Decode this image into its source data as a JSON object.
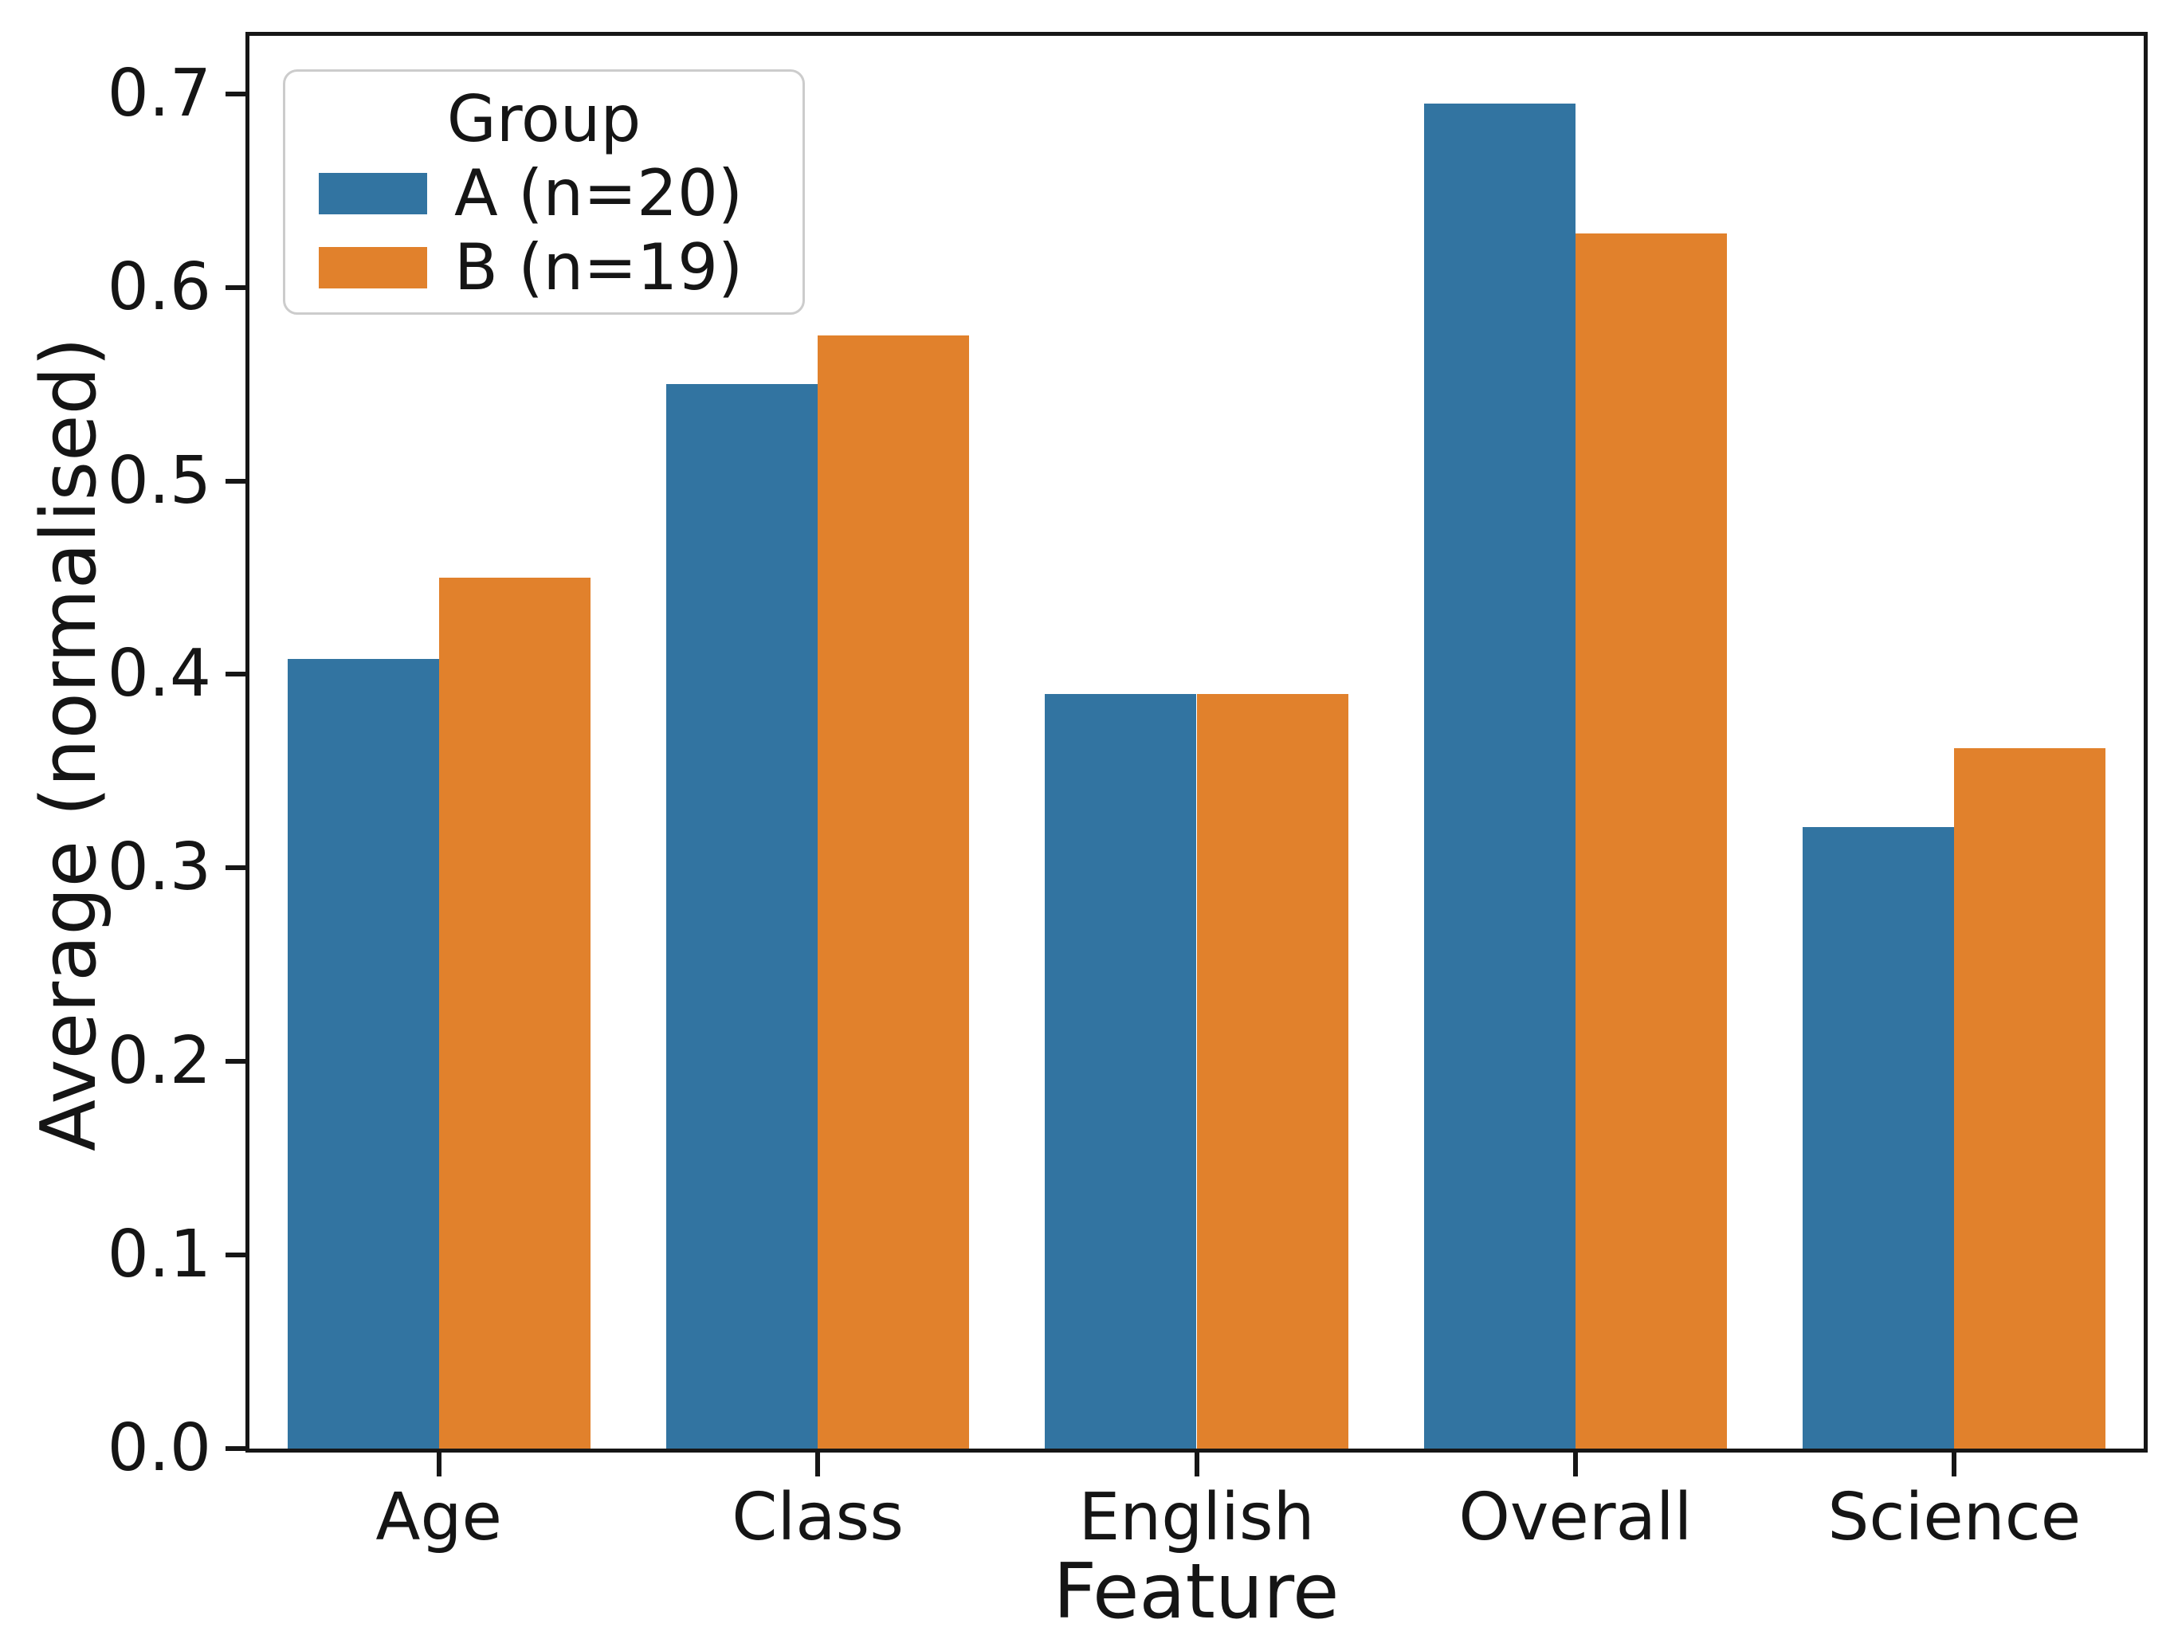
{
  "chart_data": {
    "type": "bar",
    "title": "",
    "xlabel": "Feature",
    "ylabel": "Average (normalised)",
    "categories": [
      "Age",
      "Class",
      "English",
      "Overall",
      "Science"
    ],
    "series": [
      {
        "name": "A (n=20)",
        "color": "#3274A1",
        "values": [
          0.408,
          0.55,
          0.39,
          0.695,
          0.321
        ]
      },
      {
        "name": "B (n=19)",
        "color": "#E1812C",
        "values": [
          0.45,
          0.575,
          0.39,
          0.628,
          0.362
        ]
      }
    ],
    "legend": {
      "title": "Group",
      "position": "upper left"
    },
    "ylim": [
      0,
      0.73
    ],
    "yticks": [
      "0.0",
      "0.1",
      "0.2",
      "0.3",
      "0.4",
      "0.5",
      "0.6",
      "0.7"
    ],
    "grid": false,
    "axis_color": "#161616",
    "background_color": "#ffffff"
  }
}
